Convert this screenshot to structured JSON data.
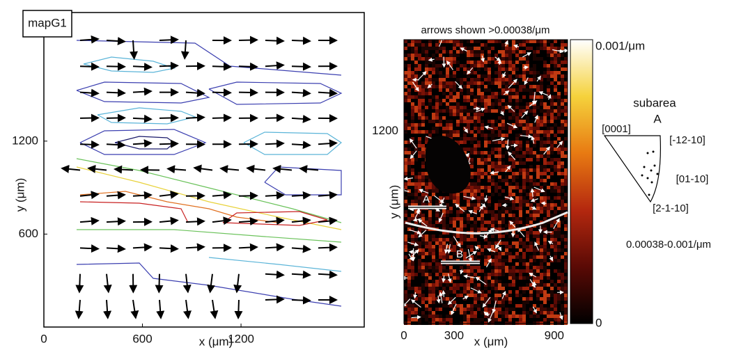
{
  "chart_data": [
    {
      "type": "quiver",
      "label": "mapG1",
      "xlabel": "x (μm)",
      "ylabel": "y (μm)",
      "xlim": [
        0,
        1950
      ],
      "ylim": [
        0,
        2030
      ],
      "xticks": [
        0,
        600,
        1200
      ],
      "yticks": [
        600,
        1200
      ]
    },
    {
      "type": "heatmap",
      "title": "arrows shown >0.00038/μm",
      "xlabel": "x (μm)",
      "ylabel": "y (μm)",
      "xlim": [
        0,
        980
      ],
      "ylim": [
        0,
        1770
      ],
      "xticks": [
        0,
        300,
        900
      ],
      "yticks": [
        1200
      ],
      "annotations": [
        "A",
        "B"
      ],
      "colorbar": {
        "clim": [
          0,
          0.001
        ],
        "ticks": [
          {
            "value": 0.001,
            "label": "0.001/μm"
          },
          0
        ],
        "colors": [
          "#000000",
          "#5a0a05",
          "#b4280f",
          "#e87a12",
          "#f5d23c",
          "#ffffff"
        ]
      }
    },
    {
      "type": "ipf",
      "title": "subarea",
      "subtitle": "A",
      "poles": [
        "[0001]",
        "[-12-10]",
        "[01-10]",
        "[2-1-10]"
      ],
      "legend": "0.00038-0.001/μm"
    }
  ]
}
